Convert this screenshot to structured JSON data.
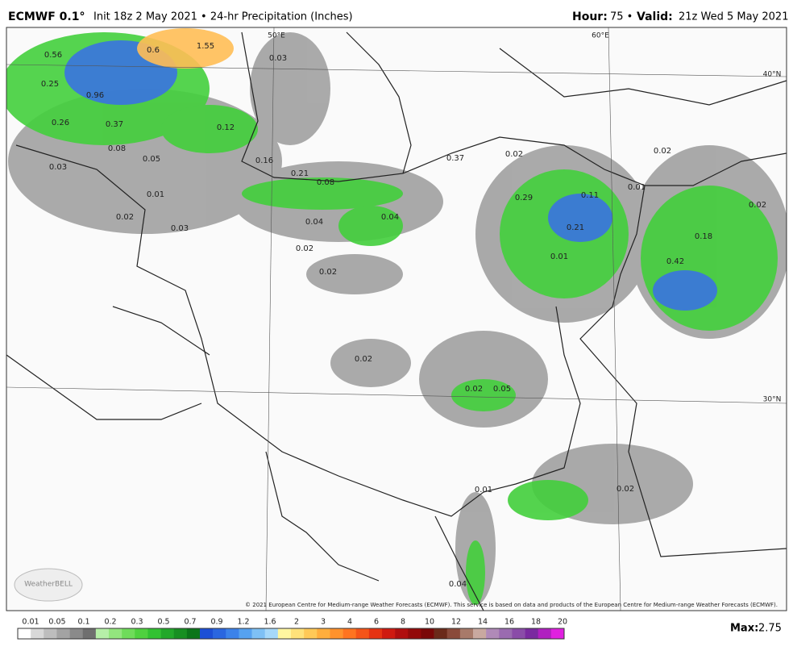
{
  "header": {
    "model": "ECMWF 0.1°",
    "run": "Init 18z 2 May 2021 • 24-hr Precipitation (Inches)",
    "hour_label": "Hour:",
    "hour": "75 •",
    "valid_label": "Valid:",
    "valid": "21z Wed 5 May 2021"
  },
  "map": {
    "gridlabels": [
      "50°E",
      "60°E",
      "40°N",
      "30°N"
    ],
    "labels": [
      "0.56",
      "0.25",
      "0.96",
      "0.26",
      "0.37",
      "0.6",
      "1.55",
      "0.08",
      "0.05",
      "0.03",
      "0.01",
      "0.02",
      "0.03",
      "0.12",
      "0.03",
      "0.16",
      "0.21",
      "0.08",
      "0.04",
      "0.04",
      "0.02",
      "0.02",
      "0.37",
      "0.02",
      "0.29",
      "0.11",
      "0.01",
      "0.02",
      "0.02",
      "0.21",
      "0.18",
      "0.42",
      "0.01",
      "0.02",
      "0.02",
      "0.05",
      "0.01",
      "0.02",
      "0.04"
    ],
    "logo": "WeatherBELL",
    "credit": "© 2021 European Centre for Medium-range Weather Forecasts (ECMWF). This service is based on data and products of the European Centre for Medium-range Weather Forecasts (ECMWF)."
  },
  "legend": {
    "ticks": [
      "0.01",
      "0.05",
      "0.1",
      "0.2",
      "0.3",
      "0.5",
      "0.7",
      "0.9",
      "1.2",
      "1.6",
      "2",
      "3",
      "4",
      "6",
      "8",
      "10",
      "12",
      "14",
      "16",
      "18",
      "20"
    ],
    "colors": [
      "#ffffff",
      "#d8d8d8",
      "#bdbdbd",
      "#a3a3a3",
      "#8a8a8a",
      "#6f6f6f",
      "#b6f0a8",
      "#93e67e",
      "#6fdc5a",
      "#4fd13f",
      "#32c232",
      "#22a82a",
      "#178f22",
      "#0b751a",
      "#1c4fd6",
      "#2a66e0",
      "#3c82ea",
      "#56a2f0",
      "#7ec0f5",
      "#a6d8fa",
      "#fff6a0",
      "#ffe27a",
      "#ffc957",
      "#ffae3d",
      "#ff922c",
      "#ff7420",
      "#f55418",
      "#e63312",
      "#cf1a10",
      "#b00e0e",
      "#930a0a",
      "#7a0808",
      "#6b2a1a",
      "#8a4a3a",
      "#a87a6a",
      "#c9a9a0",
      "#b08ab8",
      "#9a6bb0",
      "#8a4ca8",
      "#7a2aa0",
      "#b020c0",
      "#e020e0"
    ],
    "max_label": "Max:",
    "max": "2.75"
  }
}
